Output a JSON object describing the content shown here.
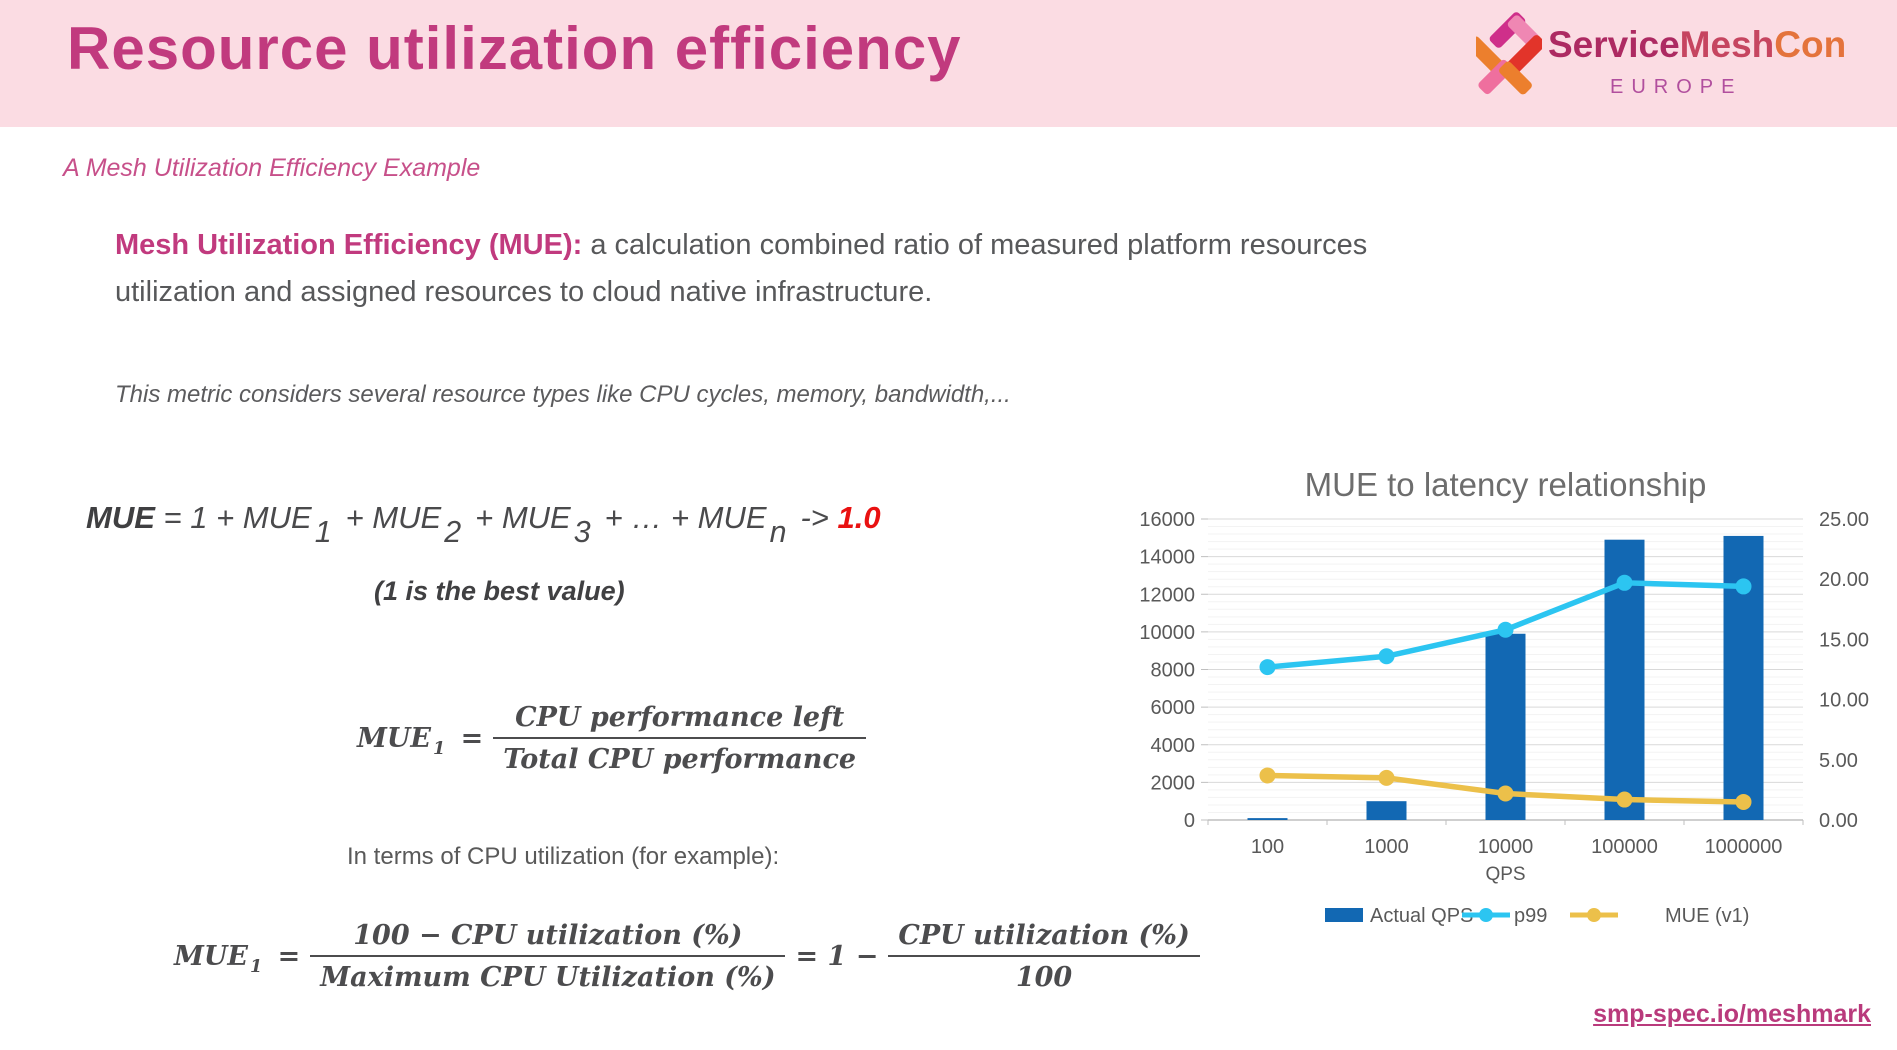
{
  "header": {
    "title": "Resource utilization efficiency",
    "logo": {
      "service": "Service",
      "mesh": "Mesh",
      "con": "Con",
      "region": "EUROPE"
    }
  },
  "subtitle": "A Mesh Utilization Efficiency Example",
  "intro": {
    "bold": "Mesh Utilization Efficiency (MUE):",
    "line1": " a calculation combined ratio of measured platform resources",
    "line2": "utilization and assigned resources to cloud native infrastructure."
  },
  "metric_note": "This metric considers several resource types like CPU cycles, memory, bandwidth,...",
  "formula_top": {
    "tokens": [
      {
        "t": "b",
        "v": "MUE"
      },
      {
        "t": "n",
        "v": " = 1 + MUE"
      },
      {
        "t": "sub",
        "v": "1"
      },
      {
        "t": "n",
        "v": "+ MUE"
      },
      {
        "t": "sub",
        "v": "2"
      },
      {
        "t": "n",
        "v": "+ MUE"
      },
      {
        "t": "sub",
        "v": "3"
      },
      {
        "t": "n",
        "v": "+ … + MUE"
      },
      {
        "t": "sub",
        "v": "n"
      },
      {
        "t": "n",
        "v": "-> "
      },
      {
        "t": "red",
        "v": "1.0"
      }
    ],
    "note": "(1 is the best value)"
  },
  "formula_mue1": {
    "lhs": "MUE",
    "sub": "1",
    "eq": "=",
    "num": "CPU performance left",
    "den": "Total CPU performance"
  },
  "cpu_note": "In terms of CPU utilization (for example):",
  "formula_mue1_cpu": {
    "lhs": "MUE",
    "sub": "1",
    "eq": "=",
    "num1": "100 − CPU utilization (%)",
    "den1": "Maximum CPU Utilization (%)",
    "mid": "= 1 −",
    "num2": "CPU utilization (%)",
    "den2": "100"
  },
  "chart_data": {
    "type": "bar",
    "subtype": "combo-bar-line-dual-axis",
    "title": "MUE to latency relationship",
    "xlabel": "QPS",
    "categories": [
      "100",
      "1000",
      "10000",
      "100000",
      "1000000"
    ],
    "left_axis": {
      "min": 0,
      "max": 16000,
      "step": 2000,
      "minor_step": 400
    },
    "right_axis": {
      "min": 0,
      "max": 25,
      "step": 5,
      "decimals": 2
    },
    "grid": true,
    "legend_position": "bottom",
    "series": [
      {
        "name": "Actual QPS",
        "type": "bar",
        "axis": "left",
        "color": "#1268b3",
        "values": [
          100,
          1000,
          9900,
          14900,
          15100
        ]
      },
      {
        "name": "p99",
        "type": "line",
        "axis": "right",
        "color": "#2cc5f1",
        "values": [
          12.7,
          13.6,
          15.8,
          19.7,
          19.4
        ]
      },
      {
        "name": "MUE (v1)",
        "type": "line",
        "axis": "right",
        "color": "#ecc04a",
        "values": [
          3.7,
          3.5,
          2.2,
          1.7,
          1.5
        ]
      }
    ],
    "colors": {
      "title": "#6d6d6d",
      "axis_text": "#595959",
      "major_grid": "#d9d9d9",
      "minor_grid": "#f3f3f3",
      "axis_line": "#bfbfbf"
    }
  },
  "footer_link": "smp-spec.io/meshmark"
}
